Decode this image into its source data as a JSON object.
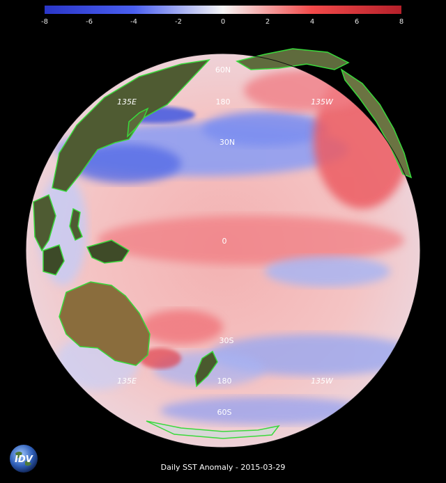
{
  "colorbar": {
    "ticks": [
      "-8",
      "-6",
      "-4",
      "-2",
      "0",
      "2",
      "4",
      "6",
      "8"
    ],
    "colors": {
      "low": "#2c3fd6",
      "mid": "#f2f2f2",
      "high": "#c0262a"
    }
  },
  "map": {
    "lat_labels": [
      "60N",
      "30N",
      "0",
      "30S",
      "60S"
    ],
    "lon_labels": [
      "135E",
      "180",
      "135W"
    ],
    "projection": "orthographic"
  },
  "caption": "Daily SST Anomaly - 2015-03-29",
  "logo": {
    "text": "IDV",
    "icon": "earth-globe-icon"
  }
}
